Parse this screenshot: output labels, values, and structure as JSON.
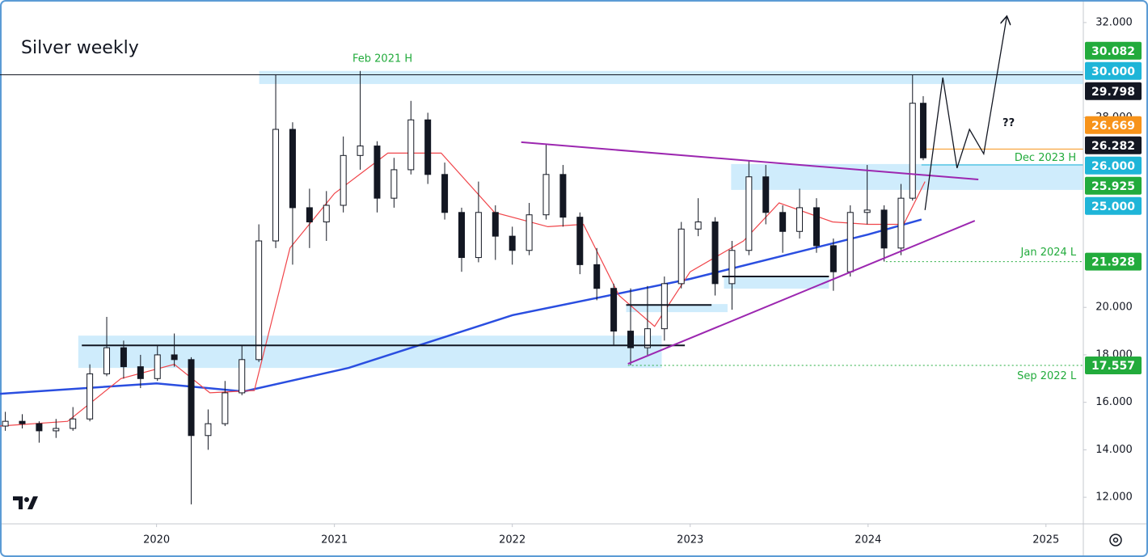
{
  "chart_data": {
    "type": "candlestick",
    "title": "Silver weekly",
    "xlim": [
      2019.12,
      2025.21
    ],
    "ylim": [
      10.88,
      32.95
    ],
    "xticks": [
      2020,
      2021,
      2022,
      2023,
      2024,
      2025
    ],
    "yticks": [
      {
        "value": 12,
        "label": "12.000"
      },
      {
        "value": 14,
        "label": "14.000"
      },
      {
        "value": 16,
        "label": "16.000"
      },
      {
        "value": 18,
        "label": "18.000"
      },
      {
        "value": 20,
        "label": "20.000"
      },
      {
        "value": 28,
        "label": "28.000"
      },
      {
        "value": 32,
        "label": "32.000"
      }
    ],
    "candles": {
      "x": [
        2019.15,
        2019.245,
        2019.34,
        2019.435,
        2019.53,
        2019.625,
        2019.72,
        2019.815,
        2019.91,
        2020.005,
        2020.1,
        2020.195,
        2020.29,
        2020.385,
        2020.48,
        2020.575,
        2020.67,
        2020.765,
        2020.86,
        2020.955,
        2021.05,
        2021.145,
        2021.24,
        2021.335,
        2021.43,
        2021.525,
        2021.62,
        2021.715,
        2021.81,
        2021.905,
        2022.0,
        2022.095,
        2022.19,
        2022.285,
        2022.38,
        2022.475,
        2022.57,
        2022.665,
        2022.76,
        2022.855,
        2022.95,
        2023.045,
        2023.14,
        2023.235,
        2023.33,
        2023.425,
        2023.52,
        2023.615,
        2023.71,
        2023.805,
        2023.9,
        2023.995,
        2024.09,
        2024.185,
        2024.25,
        2024.31
      ],
      "open": [
        15.0,
        15.2,
        15.1,
        14.8,
        14.9,
        15.3,
        17.2,
        18.3,
        17.5,
        17.0,
        18.0,
        17.8,
        14.6,
        15.1,
        16.4,
        17.8,
        22.8,
        27.5,
        24.2,
        23.6,
        24.3,
        26.4,
        26.8,
        24.6,
        25.8,
        27.9,
        25.6,
        24.0,
        22.1,
        24.0,
        23.0,
        22.4,
        23.9,
        25.6,
        23.8,
        21.8,
        20.8,
        19.0,
        18.3,
        19.1,
        21.0,
        23.3,
        23.6,
        21.0,
        22.4,
        25.5,
        24.0,
        23.2,
        24.2,
        22.6,
        21.5,
        24.0,
        24.1,
        22.5,
        24.6,
        28.6
      ],
      "high": [
        15.6,
        15.5,
        15.2,
        15.3,
        15.8,
        17.6,
        19.6,
        18.6,
        18.0,
        18.4,
        18.9,
        17.9,
        15.7,
        16.9,
        18.4,
        23.5,
        29.8,
        27.8,
        25.0,
        24.9,
        27.2,
        29.96,
        27.0,
        26.3,
        28.7,
        28.2,
        26.1,
        24.2,
        25.3,
        24.3,
        23.4,
        24.4,
        26.9,
        26.0,
        24.0,
        22.5,
        21.0,
        20.8,
        20.9,
        21.3,
        23.6,
        24.6,
        23.8,
        22.8,
        26.2,
        26.0,
        24.3,
        25.0,
        24.6,
        22.9,
        24.3,
        26.0,
        24.3,
        25.2,
        29.8,
        28.9
      ],
      "low": [
        14.8,
        14.9,
        14.3,
        14.5,
        14.8,
        15.2,
        17.1,
        17.0,
        16.6,
        16.9,
        17.5,
        11.7,
        14.0,
        15.0,
        16.3,
        17.7,
        22.5,
        21.8,
        22.5,
        22.8,
        24.0,
        25.8,
        24.0,
        24.2,
        25.6,
        25.2,
        23.7,
        21.5,
        21.9,
        22.0,
        21.8,
        22.2,
        23.7,
        23.4,
        21.4,
        20.3,
        18.4,
        17.56,
        18.0,
        18.6,
        20.8,
        23.0,
        20.5,
        19.9,
        22.2,
        23.5,
        22.3,
        22.9,
        22.3,
        20.7,
        21.3,
        23.5,
        21.93,
        22.2,
        24.5,
        26.2
      ],
      "close": [
        15.2,
        15.1,
        14.8,
        14.9,
        15.3,
        17.2,
        18.3,
        17.5,
        17.0,
        18.0,
        17.8,
        14.6,
        15.1,
        16.4,
        17.8,
        22.8,
        27.5,
        24.2,
        23.6,
        24.3,
        26.4,
        26.8,
        24.6,
        25.8,
        27.9,
        25.6,
        24.0,
        22.1,
        24.0,
        23.0,
        22.4,
        23.9,
        25.6,
        23.8,
        21.8,
        20.8,
        19.0,
        18.3,
        19.1,
        21.0,
        23.3,
        23.6,
        21.0,
        22.4,
        25.5,
        24.0,
        23.2,
        24.2,
        22.6,
        21.5,
        24.0,
        24.1,
        22.5,
        24.6,
        28.6,
        26.3
      ]
    },
    "series": [
      {
        "color": "#2a4ee0",
        "x": [
          2019.12,
          2020.0,
          2020.49,
          2021.08,
          2022.0,
          2023.0,
          2024.0,
          2024.3
        ],
        "values": [
          16.36,
          16.8,
          16.46,
          17.45,
          19.67,
          21.2,
          23.07,
          23.7
        ]
      },
      {
        "color": "#f0454a",
        "x": [
          2019.12,
          2019.5,
          2019.8,
          2020.1,
          2020.3,
          2020.55,
          2020.75,
          2021.0,
          2021.3,
          2021.6,
          2021.9,
          2022.2,
          2022.4,
          2022.6,
          2022.8,
          2023.0,
          2023.3,
          2023.5,
          2023.8,
          2024.0,
          2024.2,
          2024.32
        ],
        "values": [
          15.0,
          15.2,
          17.0,
          17.6,
          16.4,
          16.5,
          22.5,
          24.8,
          26.5,
          26.5,
          24.0,
          23.4,
          23.5,
          20.5,
          19.2,
          21.5,
          22.8,
          24.4,
          23.6,
          23.5,
          23.5,
          25.3
        ]
      }
    ],
    "zones": [
      {
        "x": [
          2020.577,
          2025.21
        ],
        "y": [
          29.41,
          29.96
        ]
      },
      {
        "x": [
          2019.56,
          2022.84
        ],
        "y": [
          17.45,
          18.81
        ]
      },
      {
        "x": [
          2023.23,
          2025.21
        ],
        "y": [
          24.95,
          26.04
        ]
      },
      {
        "x": [
          2022.64,
          2023.21
        ],
        "y": [
          19.8,
          20.14
        ]
      },
      {
        "x": [
          2023.19,
          2023.78
        ],
        "y": [
          20.79,
          21.27
        ]
      }
    ],
    "hlines": [
      {
        "x": [
          2019.58,
          2022.97
        ],
        "y": 18.4
      },
      {
        "x": [
          2022.64,
          2023.12
        ],
        "y": 20.1
      },
      {
        "x": [
          2023.18,
          2023.78
        ],
        "y": 21.3
      }
    ],
    "trendlines": [
      {
        "x": [
          2022.05,
          2024.62
        ],
        "y": [
          26.96,
          25.39
        ]
      },
      {
        "x": [
          2022.65,
          2024.6
        ],
        "y": [
          17.62,
          23.65
        ]
      }
    ],
    "projection": {
      "x": [
        2024.32,
        2024.42,
        2024.5,
        2024.57,
        2024.65,
        2024.78
      ],
      "y": [
        24.1,
        29.68,
        25.87,
        27.5,
        26.47,
        32.27
      ]
    },
    "price_labels": [
      {
        "value": 30.082,
        "label": "30.082",
        "color": "#22ab3c"
      },
      {
        "value": 30.0,
        "label": "30.000",
        "color": "#1fb5d8"
      },
      {
        "value": 29.798,
        "label": "29.798",
        "color": "#131722",
        "line_from": 2019.12
      },
      {
        "value": 26.669,
        "label": "26.669",
        "color": "#f7931a",
        "line_from": 2024.3
      },
      {
        "value": 26.282,
        "label": "26.282",
        "color": "#131722"
      },
      {
        "value": 26.0,
        "label": "26.000",
        "color": "#1fb5d8",
        "line_from": 2024.3
      },
      {
        "value": 25.925,
        "label": "25.925",
        "color": "#22ab3c"
      },
      {
        "value": 25.0,
        "label": "25.000",
        "color": "#1fb5d8"
      },
      {
        "value": 21.928,
        "label": "21.928",
        "color": "#22ab3c",
        "line_from": 2024.1
      },
      {
        "value": 17.557,
        "label": "17.557",
        "color": "#22ab3c",
        "line_from": 2022.65
      }
    ],
    "annotations": [
      {
        "text": "Feb 2021 H",
        "x": 2021.27,
        "y": 30.47,
        "anchor": "middle"
      },
      {
        "text": "Dec 2023 H",
        "x": 2025.17,
        "y": 26.3,
        "anchor": "end"
      },
      {
        "text": "Jan 2024 L",
        "x": 2025.17,
        "y": 22.3,
        "anchor": "end"
      },
      {
        "text": "Sep 2022 L",
        "x": 2025.17,
        "y": 17.1,
        "anchor": "end"
      },
      {
        "text": "??",
        "x": 2024.79,
        "y": 27.75,
        "anchor": "middle"
      }
    ]
  }
}
